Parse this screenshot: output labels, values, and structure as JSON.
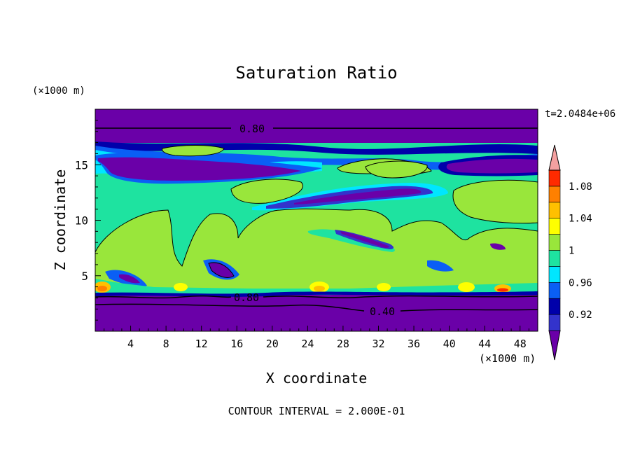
{
  "chart_data": {
    "type": "heatmap",
    "title": "Saturation Ratio",
    "xlabel": "X coordinate",
    "ylabel": "Z coordinate",
    "x_unit": "(×1000 m)",
    "y_unit": "(×1000 m)",
    "time_label": "t=2.0484e+06",
    "footer": "CONTOUR INTERVAL = 2.000E-01",
    "xlim": [
      0,
      50
    ],
    "ylim": [
      0,
      20
    ],
    "x_ticks": [
      "4",
      "8",
      "12",
      "16",
      "20",
      "24",
      "28",
      "32",
      "36",
      "40",
      "44",
      "48"
    ],
    "y_ticks": [
      "5",
      "10",
      "15"
    ],
    "colorbar": {
      "levels": [
        0.9,
        0.92,
        0.94,
        0.96,
        0.98,
        1.0,
        1.02,
        1.04,
        1.06,
        1.08,
        1.1
      ],
      "labels": [
        "0.92",
        "0.96",
        "1",
        "1.04",
        "1.08"
      ],
      "colors": [
        "#6a00a8",
        "#3333cc",
        "#0000aa",
        "#0a5ff5",
        "#00e6ff",
        "#1ee3a0",
        "#99e63b",
        "#ffff00",
        "#ffc000",
        "#ff8000",
        "#ff2a00",
        "#f4a0a0"
      ]
    },
    "contour_labels": [
      "0.80",
      "0.80",
      "0.40"
    ],
    "grid": false
  }
}
